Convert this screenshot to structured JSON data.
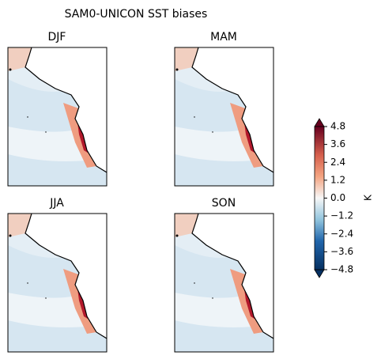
{
  "title": "SAM0-UNICON SST biases",
  "panels": [
    {
      "title": "DJF"
    },
    {
      "title": "MAM"
    },
    {
      "title": "JJA"
    },
    {
      "title": "SON"
    }
  ],
  "colorbar": {
    "label": "K",
    "clim": [
      -4.8,
      4.8
    ],
    "ticks": [
      4.8,
      3.6,
      2.4,
      1.2,
      {
        "value": 0,
        "label": "0.0"
      },
      {
        "value": -1.2,
        "label": "−1.2"
      },
      {
        "value": -2.4,
        "label": "−2.4"
      },
      {
        "value": -3.6,
        "label": "−3.6"
      },
      {
        "value": -4.8,
        "label": "−4.8"
      }
    ],
    "colormap": "RdBu_r"
  }
}
